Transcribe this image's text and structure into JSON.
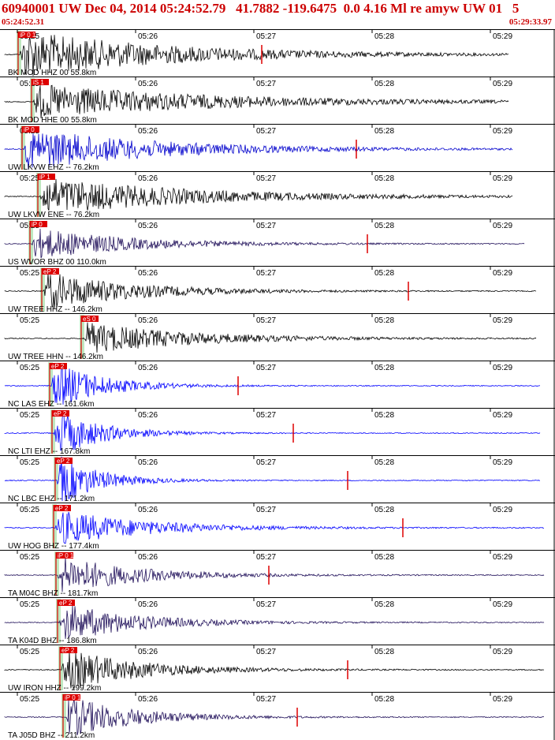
{
  "header": {
    "title": "60940001 UW Dec 04, 2014 05:24:52.79   41.7882 -119.6475  0.0 4.16 Ml re amyw UW 01   5",
    "start_time": "05:24:52.31",
    "end_time": "05:29:33.97"
  },
  "colors": {
    "header": "#cc0000",
    "pick": "#dd0000",
    "window": "#bfe8c0"
  },
  "minute_ticks": [
    "05:25",
    "05:26",
    "05:27",
    "05:28",
    "05:29"
  ],
  "traces": [
    {
      "label": "BK MOD HHZ 00 55.8km",
      "color": "#000000",
      "pick": "iP 0 1",
      "p_arrival": 25,
      "amp": 30,
      "coda": 0.18,
      "end": 645,
      "marker": 332
    },
    {
      "label": "BK MOD HHE 00 55.8km",
      "color": "#000000",
      "pick": "iS 1",
      "p_arrival": 42,
      "amp": 22,
      "coda": 0.15,
      "end": 645,
      "marker": null
    },
    {
      "label": "UW LKVW EHZ -- 76.2km",
      "color": "#0000cc",
      "pick": "iP 0",
      "p_arrival": 30,
      "amp": 26,
      "coda": 0.2,
      "end": 650,
      "marker": 452
    },
    {
      "label": "UW LKVW ENE -- 76.2km",
      "color": "#000000",
      "pick": "iP 1",
      "p_arrival": 50,
      "amp": 24,
      "coda": 0.18,
      "end": 650,
      "marker": null
    },
    {
      "label": "US WVOR BHZ 00 110.0km",
      "color": "#20105a",
      "pick": "iP 0",
      "p_arrival": 40,
      "amp": 20,
      "coda": 0.28,
      "end": 665,
      "marker": 466
    },
    {
      "label": "UW TREE HHZ -- 146.2km",
      "color": "#000000",
      "pick": "eP 2",
      "p_arrival": 55,
      "amp": 24,
      "coda": 0.3,
      "end": 680,
      "marker": 518
    },
    {
      "label": "UW TREE HHN -- 146.2km",
      "color": "#000000",
      "pick": "eS 0",
      "p_arrival": 105,
      "amp": 20,
      "coda": 0.25,
      "end": 680,
      "marker": null
    },
    {
      "label": "NC LAS EHZ -- 161.6km",
      "color": "#0000ff",
      "pick": "eP 2",
      "p_arrival": 65,
      "amp": 30,
      "coda": 0.55,
      "end": 685,
      "marker": 302
    },
    {
      "label": "NC LTI EHZ -- 167.8km",
      "color": "#0000ff",
      "pick": "eP 2",
      "p_arrival": 68,
      "amp": 30,
      "coda": 0.6,
      "end": 685,
      "marker": 372
    },
    {
      "label": "NC LBC EHZ -- 171.2km",
      "color": "#0000ff",
      "pick": "eP 2",
      "p_arrival": 72,
      "amp": 30,
      "coda": 0.65,
      "end": 685,
      "marker": 441
    },
    {
      "label": "UW HOG BHZ -- 177.4km",
      "color": "#0000ff",
      "pick": "eP 2",
      "p_arrival": 70,
      "amp": 22,
      "coda": 0.3,
      "end": 690,
      "marker": 511
    },
    {
      "label": "TA M04C BHZ -- 181.7km",
      "color": "#20105a",
      "pick": "iP 0 1",
      "p_arrival": 73,
      "amp": 24,
      "coda": 0.35,
      "end": 690,
      "marker": 341
    },
    {
      "label": "TA K04D BHZ -- 186.8km",
      "color": "#20105a",
      "pick": "eP 2",
      "p_arrival": 75,
      "amp": 24,
      "coda": 0.35,
      "end": 690,
      "marker": null
    },
    {
      "label": "UW IRON HHZ -- 199.2km",
      "color": "#000000",
      "pick": "eP 2",
      "p_arrival": 78,
      "amp": 26,
      "coda": 0.35,
      "end": 690,
      "marker": 441
    },
    {
      "label": "TA J05D BHZ -- 211.2km",
      "color": "#20105a",
      "pick": "iP 0 1",
      "p_arrival": 82,
      "amp": 26,
      "coda": 0.4,
      "end": 690,
      "marker": 377
    }
  ]
}
